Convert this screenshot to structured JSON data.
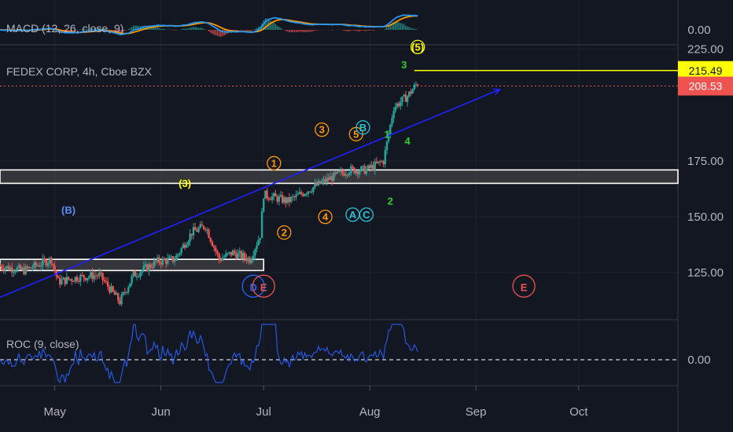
{
  "chart_data": {
    "type": "candlestick",
    "title": "FEDEX CORP, 4h, Cboe BZX",
    "price_axis": {
      "ticks": [
        {
          "label": "225.00",
          "value": 225
        },
        {
          "label": "175.00",
          "value": 175
        },
        {
          "label": "150.00",
          "value": 150
        },
        {
          "label": "125.00",
          "value": 125
        }
      ],
      "ylim": [
        104,
        227
      ]
    },
    "time_axis": {
      "ticks": [
        {
          "label": "May",
          "x": "May 1"
        },
        {
          "label": "Jun",
          "x": "Jun 1"
        },
        {
          "label": "Jul",
          "x": "Jul 1"
        },
        {
          "label": "Aug",
          "x": "Aug 1"
        },
        {
          "label": "Sep",
          "x": "Sep 1"
        },
        {
          "label": "Oct",
          "x": "Oct 1"
        }
      ],
      "xlim": [
        "Apr 15",
        "Oct 30"
      ]
    },
    "grid": true,
    "price_tags": [
      {
        "label": "215.49",
        "value": 215.49,
        "background": "#ffff00",
        "text_color": "#131722"
      },
      {
        "label": "208.53",
        "value": 208.53,
        "background": "#ef5350",
        "text_color": "#ffffff"
      }
    ],
    "candles_close_path": [
      [
        "Apr 15",
        128
      ],
      [
        "Apr 22",
        126
      ],
      [
        "Apr 30",
        131
      ],
      [
        "May 2",
        121
      ],
      [
        "May 8",
        123
      ],
      [
        "May 14",
        124
      ],
      [
        "May 20",
        112
      ],
      [
        "May 24",
        124
      ],
      [
        "May 31",
        130
      ],
      [
        "Jun 5",
        131
      ],
      [
        "Jun 10",
        143
      ],
      [
        "Jun 14",
        146
      ],
      [
        "Jun 18",
        131
      ],
      [
        "Jun 22",
        134
      ],
      [
        "Jun 27",
        131
      ],
      [
        "Jun 30",
        142
      ],
      [
        "Jul 1",
        160
      ],
      [
        "Jul 8",
        157
      ],
      [
        "Jul 14",
        162
      ],
      [
        "Jul 20",
        167
      ],
      [
        "Jul 26",
        171
      ],
      [
        "Jul 31",
        171
      ],
      [
        "Aug 5",
        175
      ],
      [
        "Aug 8",
        199
      ],
      [
        "Aug 12",
        204
      ],
      [
        "Aug 15",
        210
      ]
    ],
    "roc_pane": {
      "title": "ROC (9, close)",
      "ticks": [
        {
          "label": "0.00",
          "value": 0
        }
      ]
    },
    "macd_pane": {
      "title": "MACD (12, 26, close, 9)",
      "ticks": [
        {
          "label": "0.00",
          "value": 0
        }
      ]
    },
    "wave_labels": [
      {
        "text": "(B)",
        "x": "May 5",
        "y": 153,
        "color": "#5b8def",
        "circle": false
      },
      {
        "text": "(3)",
        "x": "Jun 8",
        "y": 165,
        "color": "#ffff00",
        "circle": false
      },
      {
        "text": "(5)",
        "x": "Aug 15",
        "y": 226,
        "color": "#ffff00",
        "circle": true
      },
      {
        "text": "1",
        "x": "Jul 4",
        "y": 174,
        "color": "#ff9800",
        "circle": true
      },
      {
        "text": "2",
        "x": "Jul 7",
        "y": 143,
        "color": "#ff9800",
        "circle": true
      },
      {
        "text": "3",
        "x": "Jul 18",
        "y": 189,
        "color": "#ff9800",
        "circle": true
      },
      {
        "text": "4",
        "x": "Jul 19",
        "y": 150,
        "color": "#ff9800",
        "circle": true
      },
      {
        "text": "5",
        "x": "Jul 28",
        "y": 187,
        "color": "#ff9800",
        "circle": true
      },
      {
        "text": "A",
        "x": "Jul 27",
        "y": 151,
        "color": "#26c6da",
        "circle": true
      },
      {
        "text": "B",
        "x": "Jul 30",
        "y": 190,
        "color": "#26c6da",
        "circle": true
      },
      {
        "text": "C",
        "x": "Jul 31",
        "y": 151,
        "color": "#26c6da",
        "circle": true
      },
      {
        "text": "1",
        "x": "Aug 6",
        "y": 187,
        "color": "#33cc33",
        "circle": false
      },
      {
        "text": "2",
        "x": "Aug 7",
        "y": 157,
        "color": "#33cc33",
        "circle": false
      },
      {
        "text": "3",
        "x": "Aug 11",
        "y": 218,
        "color": "#33cc33",
        "circle": false
      },
      {
        "text": "4",
        "x": "Aug 12",
        "y": 184,
        "color": "#33cc33",
        "circle": false
      },
      {
        "text": "D",
        "x": "Jun 28",
        "y": 119,
        "color": "#2962ff",
        "circle": true
      },
      {
        "text": "E",
        "x": "Jul 1",
        "y": 119,
        "color": "#ef5350",
        "circle": true
      },
      {
        "text": "E",
        "x": "Sep 15",
        "y": 119,
        "color": "#ef5350",
        "circle": true
      }
    ],
    "trendline": {
      "from": [
        "Apr 15",
        114
      ],
      "to": [
        "Sep 8",
        207
      ],
      "color": "#2020ff"
    },
    "horizontal_line": {
      "value": 215.49,
      "from": "Aug 14",
      "color": "#ffff00"
    },
    "dotted_price_line": {
      "value": 208.53,
      "color": "#ef5350"
    },
    "support_zones": [
      {
        "from": "Apr 15",
        "to": "Jul 1",
        "low": 126,
        "high": 131
      },
      {
        "from": "Apr 15",
        "to": "Oct 30",
        "low": 165,
        "high": 171
      }
    ]
  }
}
